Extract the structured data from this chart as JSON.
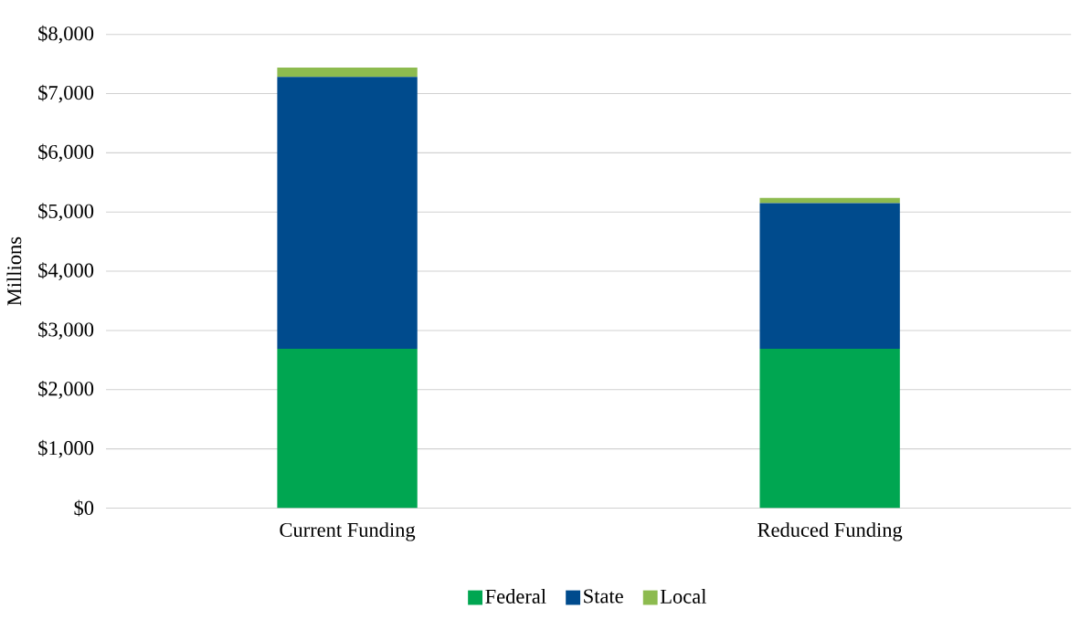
{
  "chart_data": {
    "type": "bar",
    "stacked": true,
    "ylabel": "Millions",
    "categories": [
      "Current Funding",
      "Reduced Funding"
    ],
    "series": [
      {
        "name": "Federal",
        "color": "#00a651",
        "values": [
          2690,
          2690
        ]
      },
      {
        "name": "State",
        "color": "#004b8d",
        "values": [
          4590,
          2460
        ]
      },
      {
        "name": "Local",
        "color": "#8dbb4f",
        "values": [
          160,
          90
        ]
      }
    ],
    "ylim": [
      0,
      8000
    ],
    "yticks": [
      {
        "value": 0,
        "label": "$0"
      },
      {
        "value": 1000,
        "label": "$1,000"
      },
      {
        "value": 2000,
        "label": "$2,000"
      },
      {
        "value": 3000,
        "label": "$3,000"
      },
      {
        "value": 4000,
        "label": "$4,000"
      },
      {
        "value": 5000,
        "label": "$5,000"
      },
      {
        "value": 6000,
        "label": "$6,000"
      },
      {
        "value": 7000,
        "label": "$7,000"
      },
      {
        "value": 8000,
        "label": "$8,000"
      }
    ],
    "grid": "y",
    "legend": "bottom"
  }
}
